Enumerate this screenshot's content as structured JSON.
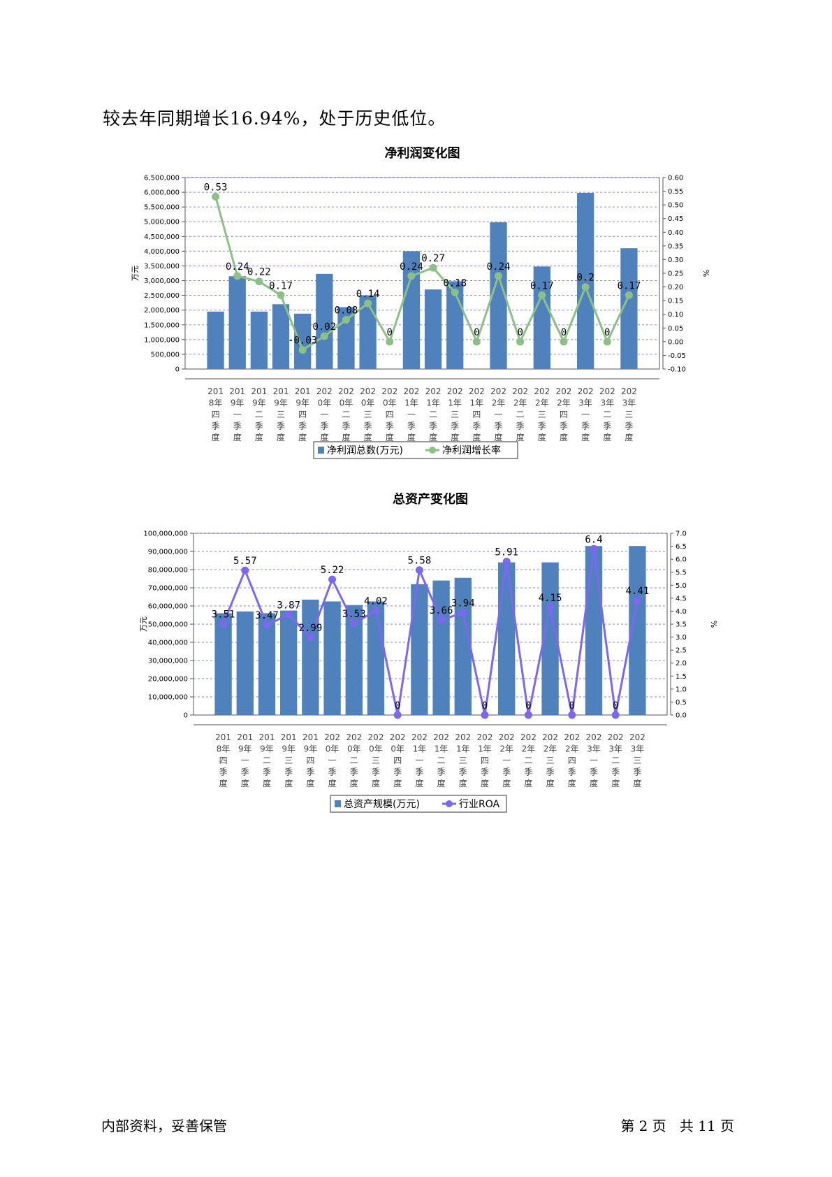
{
  "intro_text": "较去年同期增长16.94%，处于历史低位。",
  "footer": {
    "left": "内部资料，妥善保管",
    "right": "第 2 页   共 11 页"
  },
  "x_categories": [
    "2018年四季度",
    "2019年一季度",
    "2019年二季度",
    "2019年三季度",
    "2019年四季度",
    "2020年一季度",
    "2020年二季度",
    "2020年三季度",
    "2020年四季度",
    "2021年一季度",
    "2021年二季度",
    "2021年三季度",
    "2021年四季度",
    "2022年一季度",
    "2022年二季度",
    "2022年三季度",
    "2022年四季度",
    "2023年一季度",
    "2023年二季度",
    "2023年三季度"
  ],
  "chart_data": [
    {
      "type": "bar",
      "title": "净利润变化图",
      "ylabel_left": "万元",
      "ylabel_right": "%",
      "ylim_left": [
        0,
        6500000
      ],
      "ylim_right": [
        -0.1,
        0.6
      ],
      "left_ticks": [
        "0",
        "500,000",
        "1,000,000",
        "1,500,000",
        "2,000,000",
        "2,500,000",
        "3,000,000",
        "3,500,000",
        "4,000,000",
        "4,500,000",
        "5,000,000",
        "5,500,000",
        "6,000,000",
        "6,500,000"
      ],
      "right_ticks": [
        "-0.10",
        "-0.05",
        "0.00",
        "0.05",
        "0.10",
        "0.15",
        "0.20",
        "0.25",
        "0.30",
        "0.35",
        "0.40",
        "0.45",
        "0.50",
        "0.55",
        "0.60"
      ],
      "series": [
        {
          "name": "净利润总数(万元)",
          "kind": "bar",
          "color": "#4f81bd",
          "values": [
            1950000,
            3150000,
            1950000,
            2200000,
            1880000,
            3230000,
            2100000,
            2500000,
            0,
            4000000,
            2700000,
            2980000,
            0,
            4980000,
            0,
            3480000,
            0,
            5980000,
            0,
            4100000
          ]
        },
        {
          "name": "净利润增长率",
          "kind": "line",
          "color": "#8dbf86",
          "values": [
            0.53,
            0.24,
            0.22,
            0.17,
            -0.03,
            0.02,
            0.08,
            0.14,
            0,
            0.24,
            0.27,
            0.18,
            0,
            0.24,
            0,
            0.17,
            0,
            0.2,
            0,
            0.17
          ],
          "labels": [
            "0.53",
            "0.24",
            "0.22",
            "0.17",
            "-0.03",
            "0.02",
            "0.08",
            "0.14",
            "0",
            "0.24",
            "0.27",
            "0.18",
            "0",
            "0.24",
            "0",
            "0.17",
            "0",
            "0.2",
            "0",
            "0.17"
          ]
        }
      ],
      "grid": true,
      "legend": "bottom-center"
    },
    {
      "type": "bar",
      "title": "总资产变化图",
      "ylabel_left": "万元",
      "ylabel_right": "%",
      "ylim_left": [
        0,
        100000000
      ],
      "ylim_right": [
        0.0,
        7.0
      ],
      "left_ticks": [
        "0",
        "10,000,000",
        "20,000,000",
        "30,000,000",
        "40,000,000",
        "50,000,000",
        "60,000,000",
        "70,000,000",
        "80,000,000",
        "90,000,000",
        "100,000,000"
      ],
      "right_ticks": [
        "0.0",
        "0.5",
        "1.0",
        "1.5",
        "2.0",
        "2.5",
        "3.0",
        "3.5",
        "4.0",
        "4.5",
        "5.0",
        "5.5",
        "6.0",
        "6.5",
        "7.0"
      ],
      "series": [
        {
          "name": "总资产规模(万元)",
          "kind": "bar",
          "color": "#4f81bd",
          "values": [
            56000000,
            57000000,
            56000000,
            57500000,
            63500000,
            62500000,
            60500000,
            62500000,
            0,
            72000000,
            74000000,
            75500000,
            0,
            84000000,
            0,
            84000000,
            0,
            93000000,
            0,
            93000000
          ]
        },
        {
          "name": "行业ROA",
          "kind": "line",
          "color": "#7b68ee",
          "values": [
            3.51,
            5.57,
            3.47,
            3.87,
            2.99,
            5.22,
            3.53,
            4.02,
            0,
            5.58,
            3.66,
            3.94,
            0,
            5.91,
            0,
            4.15,
            0,
            6.4,
            0,
            4.41
          ],
          "labels": [
            "3.51",
            "5.57",
            "3.47",
            "3.87",
            "2.99",
            "5.22",
            "3.53",
            "4.02",
            "0",
            "5.58",
            "3.66",
            "3.94",
            "0",
            "5.91",
            "0",
            "4.15",
            "0",
            "6.4",
            "0",
            "4.41"
          ]
        }
      ],
      "grid": true,
      "legend": "bottom-center"
    }
  ]
}
